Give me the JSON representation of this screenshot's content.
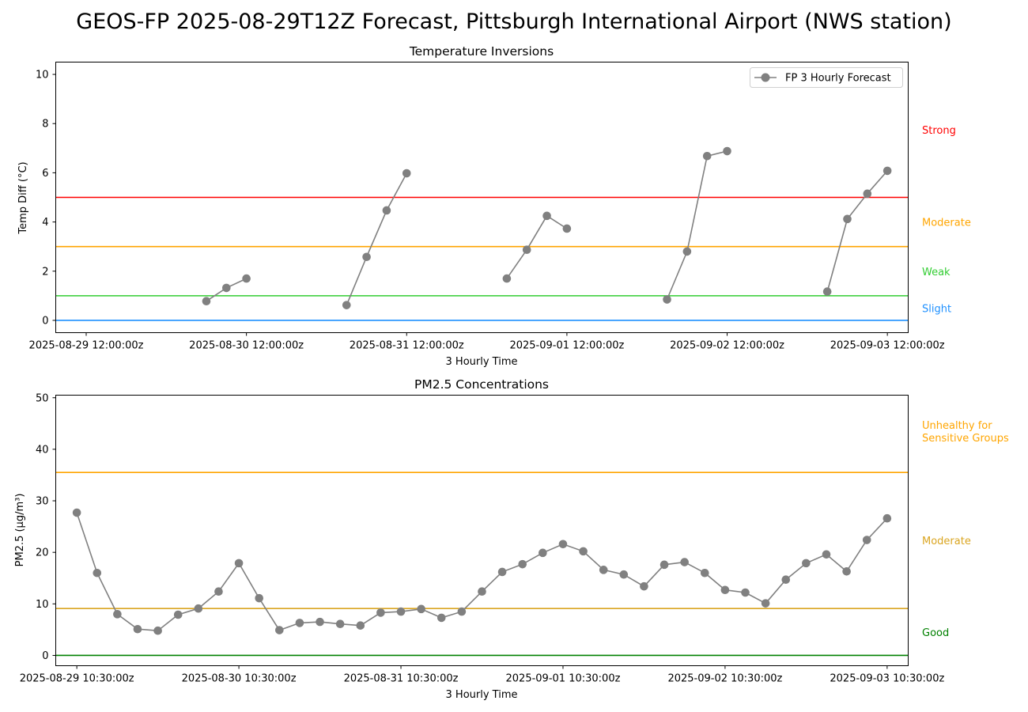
{
  "figure": {
    "title": "GEOS-FP 2025-08-29T12Z Forecast, Pittsburgh International Airport (NWS station)"
  },
  "chart_data": [
    {
      "type": "line",
      "title": "Temperature Inversions",
      "xlabel": "3 Hourly Time",
      "ylabel": "Temp Diff (°C)",
      "x_ticks": [
        "2025-08-29 12:00:00z",
        "2025-08-30 12:00:00z",
        "2025-08-31 12:00:00z",
        "2025-09-01 12:00:00z",
        "2025-09-02 12:00:00z",
        "2025-09-03 12:00:00z"
      ],
      "x_tick_days": [
        0,
        1,
        2,
        3,
        4,
        5
      ],
      "xlim_days": [
        -0.19,
        5.13
      ],
      "ylim": [
        -0.5,
        10.5
      ],
      "y_ticks": [
        0,
        2,
        4,
        6,
        8,
        10
      ],
      "legend": {
        "label": "FP 3 Hourly Forecast",
        "placement": "upper-right"
      },
      "series": [
        {
          "name": "FP 3 Hourly Forecast",
          "color": "#808080",
          "segments": [
            {
              "x_days": [
                0.75,
                0.875,
                1.0
              ],
              "y": [
                0.78,
                1.32,
                1.7
              ]
            },
            {
              "x_days": [
                1.625,
                1.75,
                1.875,
                2.0
              ],
              "y": [
                0.62,
                2.58,
                4.47,
                5.98
              ]
            },
            {
              "x_days": [
                2.625,
                2.75,
                2.875,
                3.0
              ],
              "y": [
                1.7,
                2.87,
                4.25,
                3.73
              ]
            },
            {
              "x_days": [
                3.625,
                3.75,
                3.875,
                4.0
              ],
              "y": [
                0.85,
                2.8,
                6.68,
                6.88
              ]
            },
            {
              "x_days": [
                4.625,
                4.75,
                4.875,
                5.0
              ],
              "y": [
                1.17,
                4.12,
                5.15,
                6.08
              ]
            }
          ]
        }
      ],
      "thresholds": [
        {
          "value": 0,
          "color": "#1e90ff",
          "label": "Slight",
          "label_y": 0.5
        },
        {
          "value": 1,
          "color": "#32cd32",
          "label": "Weak",
          "label_y": 2.0
        },
        {
          "value": 3,
          "color": "#ffa500",
          "label": "Moderate",
          "label_y": 4.0
        },
        {
          "value": 5,
          "color": "#ff0000",
          "label": "Strong",
          "label_y": 7.75
        }
      ]
    },
    {
      "type": "line",
      "title": "PM2.5 Concentrations",
      "xlabel": "3 Hourly Time",
      "ylabel": "PM2.5 (μg/m³)",
      "x_ticks": [
        "2025-08-29 10:30:00z",
        "2025-08-30 10:30:00z",
        "2025-08-31 10:30:00z",
        "2025-09-01 10:30:00z",
        "2025-09-02 10:30:00z",
        "2025-09-03 10:30:00z"
      ],
      "x_tick_days": [
        0,
        1,
        2,
        3,
        4,
        5
      ],
      "xlim_days": [
        -0.13,
        5.13
      ],
      "ylim": [
        -2,
        50.5
      ],
      "y_ticks": [
        0,
        10,
        20,
        30,
        40,
        50
      ],
      "series": [
        {
          "name": "FP 3 Hourly Forecast",
          "color": "#808080",
          "x_days": [
            0,
            0.125,
            0.25,
            0.375,
            0.5,
            0.625,
            0.75,
            0.875,
            1.0,
            1.125,
            1.25,
            1.375,
            1.5,
            1.625,
            1.75,
            1.875,
            2.0,
            2.125,
            2.25,
            2.375,
            2.5,
            2.625,
            2.75,
            2.875,
            3.0,
            3.125,
            3.25,
            3.375,
            3.5,
            3.625,
            3.75,
            3.875,
            4.0,
            4.125,
            4.25,
            4.375,
            4.5,
            4.625,
            4.75,
            4.875,
            5.0
          ],
          "y": [
            27.7,
            16.0,
            8.0,
            5.1,
            4.8,
            7.9,
            9.1,
            12.4,
            17.9,
            11.1,
            4.9,
            6.3,
            6.5,
            6.1,
            5.8,
            8.3,
            8.5,
            9.0,
            7.3,
            8.5,
            12.4,
            16.2,
            17.7,
            19.9,
            21.6,
            20.2,
            16.6,
            15.7,
            13.4,
            17.6,
            18.1,
            16.0,
            12.7,
            12.2,
            10.1,
            14.7,
            17.9,
            19.6,
            16.3,
            22.4,
            26.6
          ]
        }
      ],
      "thresholds": [
        {
          "value": 0,
          "color": "#008000",
          "label": "Good",
          "label_y": 4.5
        },
        {
          "value": 9.1,
          "color": "#daa520",
          "label": "Moderate",
          "label_y": 22.3
        },
        {
          "value": 35.5,
          "color": "#ffa500",
          "label": "Unhealthy for\nSensitive Groups",
          "label_y": 43.5
        }
      ]
    }
  ]
}
